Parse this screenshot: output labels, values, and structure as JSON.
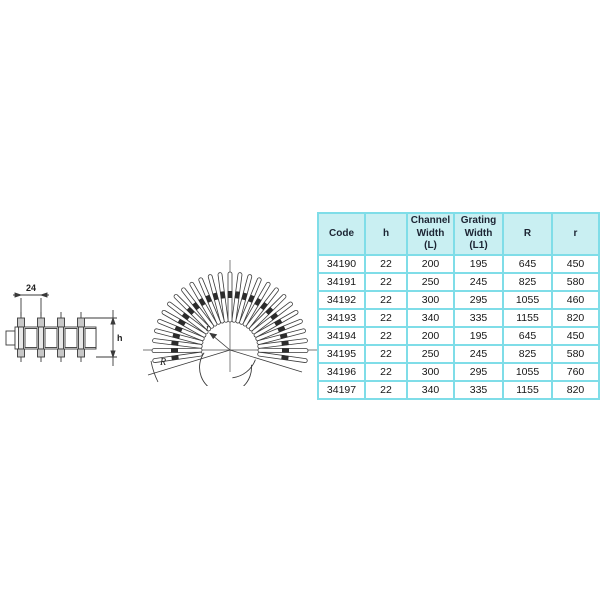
{
  "colors": {
    "table_border": "#7fdde8",
    "header_bg": "#c9eff2",
    "header_text": "#1c2433",
    "cell_text": "#161616",
    "line_color": "#3a3a3a"
  },
  "side_view": {
    "pitch_label": "24",
    "height_label": "h"
  },
  "fan_view": {
    "outer_radius_label": "R",
    "inner_radius_label": "r"
  },
  "table": {
    "columns": [
      "Code",
      "h",
      "Channel Width (L)",
      "Grating Width (L1)",
      "R",
      "r"
    ],
    "rows": [
      [
        "34190",
        "22",
        "200",
        "195",
        "645",
        "450"
      ],
      [
        "34191",
        "22",
        "250",
        "245",
        "825",
        "580"
      ],
      [
        "34192",
        "22",
        "300",
        "295",
        "1055",
        "460"
      ],
      [
        "34193",
        "22",
        "340",
        "335",
        "1155",
        "820"
      ],
      [
        "34194",
        "22",
        "200",
        "195",
        "645",
        "450"
      ],
      [
        "34195",
        "22",
        "250",
        "245",
        "825",
        "580"
      ],
      [
        "34196",
        "22",
        "300",
        "295",
        "1055",
        "760"
      ],
      [
        "34197",
        "22",
        "340",
        "335",
        "1155",
        "820"
      ]
    ]
  }
}
